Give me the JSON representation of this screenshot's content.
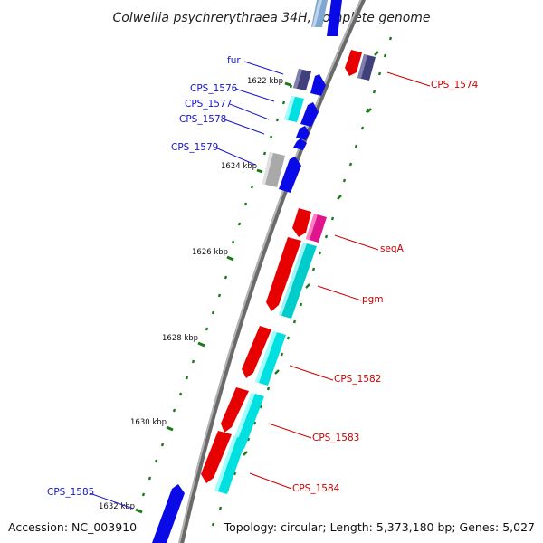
{
  "title": "Colwellia psychrerythraea 34H, complete genome",
  "accession": "Accession: NC_003910",
  "summary": "Topology: circular; Length: 5,373,180 bp; Genes: 5,027",
  "colors": {
    "backbone": "#7f7f7f",
    "tick": "#1a7a1a",
    "forward_label": "#1515c8",
    "reverse_label": "#cc0000",
    "red": "#e60000",
    "blue": "#0a0ae6",
    "cyan": "#00cccc",
    "navy": "#40407a",
    "magenta": "#e0148c",
    "gray": "#a9a9a9",
    "lightblue": "#7fa7d0"
  },
  "position_labels": [
    "1622 kbp",
    "1624 kbp",
    "1626 kbp",
    "1628 kbp",
    "1630 kbp",
    "1632 kbp"
  ],
  "gene_labels": {
    "fur": "fur",
    "cps1576": "CPS_1576",
    "cps1577": "CPS_1577",
    "cps1578": "CPS_1578",
    "cps1579": "CPS_1579",
    "cps1585": "CPS_1585",
    "cps1574": "CPS_1574",
    "seqa": "seqA",
    "pgm": "pgm",
    "cps1582": "CPS_1582",
    "cps1583": "CPS_1583",
    "cps1584": "CPS_1584"
  }
}
